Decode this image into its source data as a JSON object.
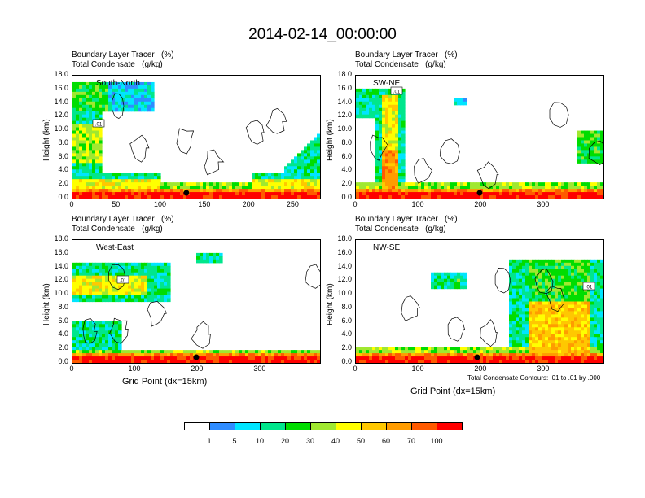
{
  "title": "2014-02-14_00:00:00",
  "panel_top_label_1": "Boundary Layer Tracer   (%)",
  "panel_top_label_2": "Total Condensate   (g/kg)",
  "y_axis_title": "Height (km)",
  "x_axis_title": "Grid Point (dx=15km)",
  "contour_note": "Total Condensate Contours: .01 to .01 by .000",
  "contour_box_label": ".01",
  "chart_data": [
    {
      "type": "heatmap",
      "panel": "South-North",
      "ylim": [
        0,
        18
      ],
      "xlim": [
        0,
        280
      ],
      "yticks": [
        "0.0",
        "2.0",
        "4.0",
        "6.0",
        "8.0",
        "10.0",
        "12.0",
        "14.0",
        "16.0",
        "18.0"
      ],
      "xticks": [
        "0",
        "50",
        "100",
        "150",
        "200",
        "250"
      ]
    },
    {
      "type": "heatmap",
      "panel": "SW-NE",
      "ylim": [
        0,
        18
      ],
      "xlim": [
        0,
        395
      ],
      "yticks": [
        "0.0",
        "2.0",
        "4.0",
        "6.0",
        "8.0",
        "10.0",
        "12.0",
        "14.0",
        "16.0",
        "18.0"
      ],
      "xticks": [
        "0",
        "100",
        "200",
        "300"
      ]
    },
    {
      "type": "heatmap",
      "panel": "West-East",
      "ylim": [
        0,
        18
      ],
      "xlim": [
        0,
        395
      ],
      "yticks": [
        "0.0",
        "2.0",
        "4.0",
        "6.0",
        "8.0",
        "10.0",
        "12.0",
        "14.0",
        "16.0",
        "18.0"
      ],
      "xticks": [
        "0",
        "100",
        "200",
        "300"
      ]
    },
    {
      "type": "heatmap",
      "panel": "NW-SE",
      "ylim": [
        0,
        18
      ],
      "xlim": [
        0,
        395
      ],
      "yticks": [
        "0.0",
        "2.0",
        "4.0",
        "6.0",
        "8.0",
        "10.0",
        "12.0",
        "14.0",
        "16.0",
        "18.0"
      ],
      "xticks": [
        "0",
        "100",
        "200",
        "300"
      ]
    }
  ],
  "colorbar": {
    "labels": [
      "1",
      "5",
      "10",
      "20",
      "30",
      "40",
      "50",
      "60",
      "70",
      "100"
    ],
    "colors": [
      "#ffffff",
      "#2f8cff",
      "#00e5ff",
      "#00e68c",
      "#00dd00",
      "#a0e830",
      "#ffff00",
      "#ffc800",
      "#ff9c00",
      "#ff5a00",
      "#ff0000"
    ]
  }
}
